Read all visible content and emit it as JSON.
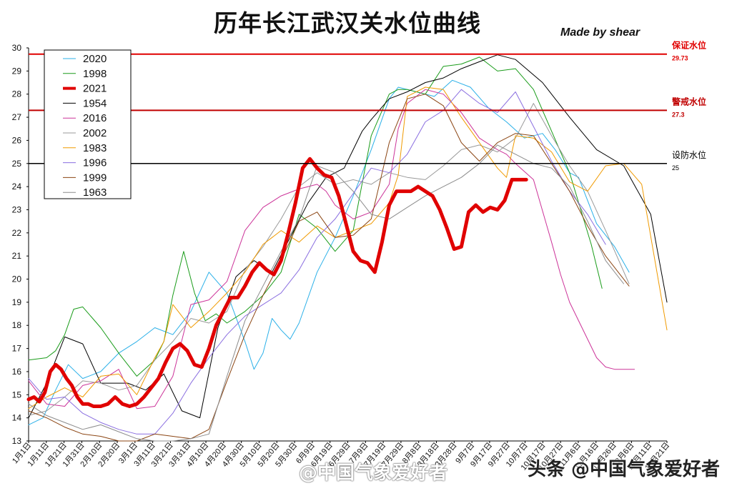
{
  "title": "历年长江武汉关水位曲线",
  "subtitle": "Made  by shear",
  "watermark_left": "@中国气象爱好者",
  "watermark_right": "头条 @中国气象爱好者",
  "chart_data": {
    "type": "line",
    "title": "历年长江武汉关水位曲线",
    "xlabel": "",
    "ylabel": "",
    "ylim": [
      13,
      30
    ],
    "xlim": [
      0,
      354
    ],
    "grid": false,
    "legend_position": "top-left",
    "yticks": [
      13,
      14,
      15,
      16,
      17,
      18,
      19,
      20,
      21,
      22,
      23,
      24,
      25,
      26,
      27,
      28,
      29,
      30
    ],
    "xticks": [
      "1月1日",
      "1月11日",
      "1月21日",
      "1月31日",
      "2月10日",
      "2月20日",
      "3月1日",
      "3月11日",
      "3月21日",
      "3月31日",
      "4月10日",
      "4月20日",
      "4月30日",
      "5月10日",
      "5月20日",
      "5月30日",
      "6月9日",
      "6月19日",
      "6月29日",
      "7月9日",
      "7月19日",
      "7月29日",
      "8月8日",
      "8月18日",
      "8月28日",
      "9月7日",
      "9月17日",
      "9月27日",
      "10月7日",
      "10月17日",
      "10月27日",
      "11月6日",
      "11月16日",
      "11月26日",
      "12月6日",
      "12月11日",
      "12月21日"
    ],
    "reference_lines": [
      {
        "name": "保证水位",
        "value": 29.73,
        "label": "29.73",
        "color": "#e00000"
      },
      {
        "name": "警戒水位",
        "value": 27.3,
        "label": "27.3",
        "color": "#c00000"
      },
      {
        "name": "设防水位",
        "value": 25,
        "label": "25",
        "color": "#000000"
      }
    ],
    "series": [
      {
        "name": "2020",
        "color": "#2bb0e8",
        "width": 1,
        "x": [
          0,
          8,
          15,
          22,
          30,
          40,
          50,
          60,
          70,
          80,
          90,
          100,
          110,
          120,
          125,
          130,
          135,
          140,
          145,
          150,
          160,
          170,
          180,
          190,
          200,
          205,
          215,
          225,
          235,
          245,
          255,
          265,
          275,
          285,
          292,
          300,
          305,
          315,
          325,
          333
        ],
        "y": [
          13.7,
          14.0,
          15.2,
          16.3,
          15.7,
          16.0,
          16.8,
          17.3,
          17.9,
          17.6,
          18.6,
          20.3,
          19.4,
          17.3,
          16.1,
          16.8,
          18.3,
          17.8,
          17.4,
          18.1,
          20.3,
          21.8,
          23.6,
          25.6,
          27.8,
          28.3,
          28.1,
          27.9,
          28.6,
          28.3,
          27.4,
          26.8,
          26.1,
          26.3,
          25.6,
          24.6,
          24.4,
          22.4,
          21.4,
          20.3
        ]
      },
      {
        "name": "1998",
        "color": "#1a9c1a",
        "width": 1,
        "x": [
          0,
          10,
          15,
          20,
          25,
          30,
          40,
          50,
          60,
          70,
          75,
          80,
          86,
          92,
          98,
          104,
          110,
          120,
          130,
          140,
          150,
          160,
          170,
          180,
          190,
          200,
          205,
          210,
          220,
          230,
          240,
          250,
          260,
          270,
          280,
          300,
          312,
          318
        ],
        "y": [
          16.5,
          16.6,
          16.9,
          17.6,
          18.7,
          18.8,
          17.9,
          16.8,
          15.8,
          16.5,
          17.3,
          19.3,
          21.2,
          19.4,
          18.2,
          18.5,
          18.1,
          18.6,
          19.3,
          20.3,
          22.8,
          22.2,
          21.2,
          22.1,
          26.2,
          28.0,
          28.2,
          28.2,
          28.0,
          29.2,
          29.3,
          29.6,
          29.0,
          29.1,
          28.2,
          24.6,
          21.5,
          19.6
        ]
      },
      {
        "name": "1954",
        "color": "#000000",
        "width": 1,
        "x": [
          0,
          10,
          20,
          30,
          40,
          55,
          65,
          75,
          85,
          95,
          105,
          115,
          125,
          135,
          145,
          155,
          165,
          175,
          180,
          185,
          190,
          200,
          210,
          220,
          230,
          240,
          250,
          260,
          270,
          285,
          300,
          315,
          330,
          345,
          354
        ],
        "y": [
          14.0,
          15.5,
          17.5,
          17.2,
          15.5,
          15.5,
          15.2,
          15.9,
          14.3,
          14.0,
          17.9,
          20.1,
          20.8,
          20.3,
          21.8,
          23.3,
          24.4,
          24.8,
          25.6,
          26.4,
          26.9,
          27.8,
          28.1,
          28.5,
          28.7,
          29.1,
          29.4,
          29.7,
          29.5,
          28.5,
          27.0,
          25.6,
          24.9,
          22.8,
          19.0
        ]
      },
      {
        "name": "2016",
        "color": "#cc3399",
        "width": 1,
        "x": [
          0,
          10,
          20,
          30,
          40,
          50,
          60,
          70,
          80,
          90,
          100,
          110,
          120,
          125,
          130,
          140,
          150,
          160,
          165,
          170,
          180,
          190,
          200,
          205,
          210,
          220,
          230,
          240,
          250,
          260,
          265,
          270,
          280,
          290,
          295,
          300,
          310,
          315,
          320,
          325,
          330,
          336
        ],
        "y": [
          15.6,
          14.6,
          14.5,
          15.4,
          15.6,
          16.1,
          14.4,
          14.5,
          15.8,
          18.9,
          19.1,
          19.9,
          22.1,
          22.6,
          23.1,
          23.6,
          23.9,
          24.1,
          23.8,
          23.2,
          22.6,
          22.9,
          24.1,
          26.5,
          27.6,
          28.2,
          28.0,
          27.2,
          26.1,
          25.6,
          25.4,
          25.0,
          24.3,
          21.6,
          20.2,
          19.0,
          17.4,
          16.6,
          16.2,
          16.1,
          16.1,
          16.1
        ]
      },
      {
        "name": "2002",
        "color": "#999999",
        "width": 1,
        "x": [
          0,
          10,
          20,
          30,
          40,
          50,
          60,
          70,
          80,
          90,
          100,
          110,
          120,
          130,
          140,
          150,
          160,
          170,
          180,
          190,
          200,
          210,
          220,
          230,
          240,
          250,
          260,
          270,
          280,
          290,
          300,
          310,
          320,
          333
        ],
        "y": [
          14.1,
          14.3,
          14.9,
          15.6,
          15.5,
          15.2,
          15.4,
          16.5,
          17.3,
          18.3,
          18.1,
          18.6,
          20.4,
          21.4,
          22.6,
          24.0,
          24.6,
          24.1,
          24.3,
          24.1,
          24.6,
          24.4,
          24.3,
          24.9,
          25.6,
          25.8,
          25.5,
          26.1,
          27.6,
          26.2,
          24.9,
          23.8,
          22.1,
          19.8
        ]
      },
      {
        "name": "1983",
        "color": "#f09a00",
        "width": 1,
        "x": [
          0,
          10,
          20,
          30,
          40,
          50,
          60,
          70,
          75,
          80,
          90,
          100,
          110,
          120,
          130,
          140,
          150,
          160,
          170,
          180,
          190,
          200,
          205,
          210,
          220,
          230,
          240,
          250,
          260,
          265,
          270,
          280,
          290,
          300,
          310,
          320,
          330,
          340,
          354
        ],
        "y": [
          14.4,
          14.9,
          15.3,
          14.9,
          15.8,
          15.9,
          15.0,
          16.6,
          17.3,
          18.9,
          17.9,
          18.6,
          19.4,
          20.3,
          21.5,
          22.1,
          21.6,
          22.3,
          21.8,
          22.1,
          22.4,
          23.3,
          24.5,
          27.9,
          28.3,
          28.2,
          27.0,
          25.9,
          24.8,
          24.4,
          26.2,
          26.1,
          25.5,
          24.2,
          23.8,
          24.9,
          25.0,
          24.1,
          17.8
        ]
      },
      {
        "name": "1996",
        "color": "#8a6ee0",
        "width": 1,
        "x": [
          0,
          10,
          20,
          30,
          40,
          50,
          60,
          70,
          80,
          90,
          100,
          110,
          120,
          130,
          140,
          150,
          160,
          170,
          180,
          190,
          200,
          210,
          220,
          230,
          240,
          250,
          260,
          270,
          280,
          290,
          300,
          310,
          320
        ],
        "y": [
          15.7,
          14.8,
          14.9,
          14.2,
          13.8,
          13.5,
          13.3,
          13.3,
          14.2,
          15.5,
          16.6,
          17.6,
          18.4,
          18.9,
          19.4,
          20.4,
          21.8,
          22.6,
          23.7,
          24.8,
          24.6,
          25.4,
          26.8,
          27.3,
          28.2,
          27.6,
          27.2,
          28.1,
          26.6,
          25.1,
          23.8,
          22.8,
          21.5
        ]
      },
      {
        "name": "1999",
        "color": "#8b4513",
        "width": 1,
        "x": [
          0,
          10,
          20,
          30,
          40,
          50,
          60,
          70,
          80,
          90,
          100,
          110,
          120,
          130,
          140,
          150,
          160,
          170,
          180,
          190,
          200,
          210,
          220,
          230,
          240,
          250,
          260,
          270,
          280,
          290,
          300,
          310,
          320,
          333
        ],
        "y": [
          14.3,
          14.0,
          13.6,
          13.3,
          13.2,
          13.0,
          13.0,
          13.3,
          13.2,
          13.1,
          13.5,
          15.6,
          17.6,
          19.3,
          20.8,
          22.5,
          22.9,
          21.8,
          21.9,
          22.6,
          25.9,
          27.8,
          28.0,
          27.5,
          25.9,
          25.1,
          25.9,
          26.3,
          26.2,
          25.0,
          23.8,
          22.3,
          21.0,
          19.7
        ]
      },
      {
        "name": "1963",
        "color": "#8c8c8c",
        "width": 1,
        "x": [
          0,
          10,
          20,
          30,
          40,
          50,
          60,
          70,
          80,
          90,
          100,
          110,
          120,
          130,
          140,
          150,
          160,
          170,
          180,
          190,
          200,
          210,
          220,
          230,
          240,
          250,
          260,
          270,
          280,
          290,
          300,
          310,
          320,
          330
        ],
        "y": [
          14.6,
          14.1,
          13.8,
          13.5,
          13.7,
          13.4,
          13.1,
          13.0,
          13.0,
          13.1,
          13.3,
          15.8,
          18.2,
          19.7,
          21.2,
          22.6,
          24.9,
          24.6,
          23.8,
          22.8,
          22.6,
          23.1,
          23.6,
          24.0,
          24.4,
          25.0,
          25.8,
          25.4,
          25.0,
          24.8,
          24.0,
          22.5,
          20.8,
          19.8
        ]
      },
      {
        "name": "2021",
        "color": "#e00000",
        "width": 5,
        "x": [
          0,
          3,
          6,
          9,
          12,
          15,
          18,
          21,
          24,
          27,
          30,
          33,
          36,
          40,
          44,
          48,
          52,
          56,
          60,
          64,
          68,
          72,
          76,
          80,
          84,
          88,
          92,
          96,
          100,
          104,
          108,
          112,
          116,
          120,
          124,
          128,
          132,
          136,
          140,
          144,
          148,
          152,
          156,
          160,
          164,
          168,
          172,
          176,
          180,
          184,
          188,
          192,
          196,
          200,
          204,
          208,
          212,
          216,
          220,
          224,
          228,
          232,
          236,
          240,
          244,
          248,
          252,
          256,
          260,
          264,
          268,
          272,
          276
        ],
        "y": [
          14.8,
          14.9,
          14.7,
          15.1,
          16.0,
          16.3,
          16.1,
          15.7,
          15.4,
          14.9,
          14.6,
          14.6,
          14.5,
          14.5,
          14.6,
          14.9,
          14.6,
          14.5,
          14.6,
          14.9,
          15.3,
          15.7,
          16.4,
          17.0,
          17.2,
          16.9,
          16.3,
          16.2,
          17.0,
          18.0,
          18.6,
          19.2,
          19.2,
          19.7,
          20.3,
          20.7,
          20.4,
          20.2,
          20.8,
          22.0,
          23.3,
          24.8,
          25.2,
          24.8,
          24.5,
          24.4,
          23.6,
          22.4,
          21.2,
          20.8,
          20.7,
          20.3,
          21.6,
          23.2,
          23.8,
          23.8,
          23.8,
          24.0,
          23.8,
          23.6,
          23.0,
          22.2,
          21.3,
          21.4,
          22.9,
          23.2,
          22.9,
          23.1,
          23.0,
          23.4,
          24.3,
          24.3,
          24.3
        ]
      }
    ]
  },
  "ref_labels": {
    "guarantee_name": "保证水位",
    "guarantee_value": "29.73",
    "warning_name": "警戒水位",
    "warning_value": "27.3",
    "setup_name": "设防水位",
    "setup_value": "25"
  },
  "legend_items": [
    "2020",
    "1998",
    "2021",
    "1954",
    "2016",
    "2002",
    "1983",
    "1996",
    "1999",
    "1963"
  ]
}
